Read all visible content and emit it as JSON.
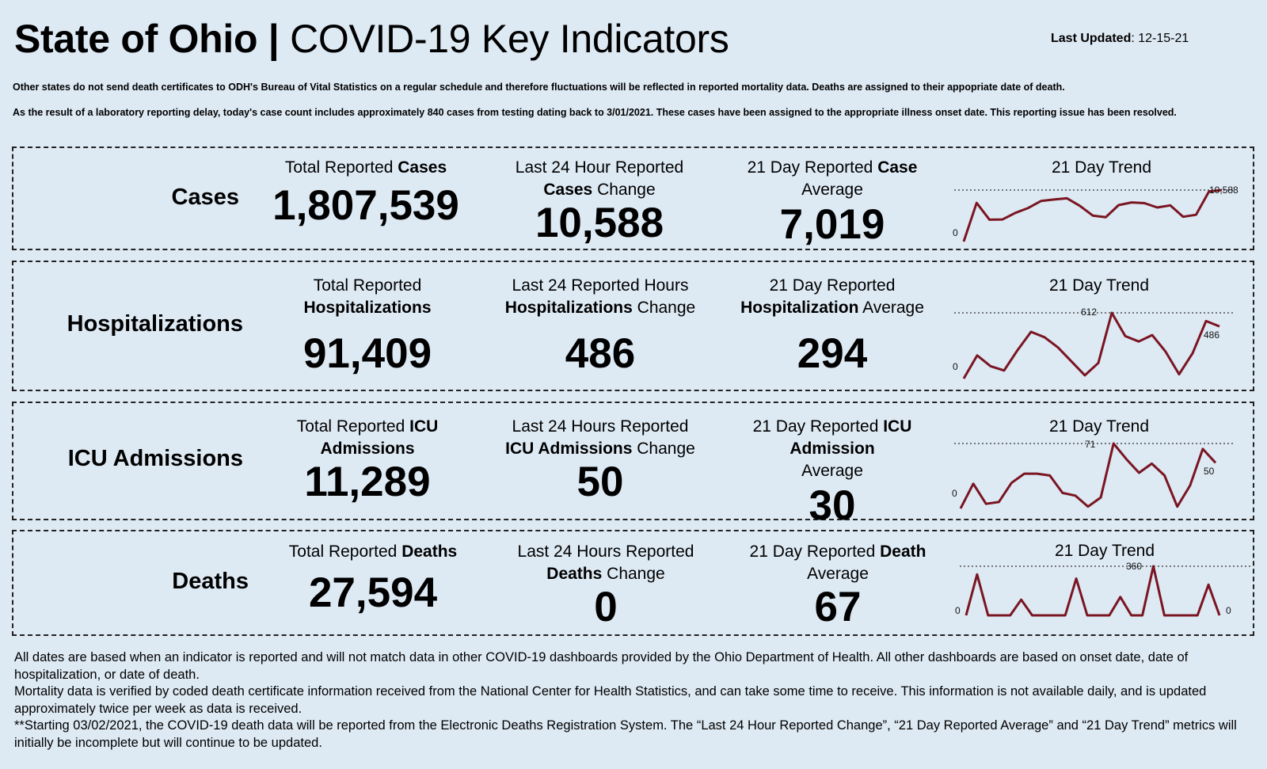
{
  "header": {
    "title_bold": "State of Ohio |",
    "title_rest": " COVID-19  Key Indicators",
    "updated_label": "Last Updated",
    "updated_value": ": 12-15-21"
  },
  "notes": [
    "Other states do not send death certificates to ODH's Bureau of Vital Statistics on a regular schedule and therefore fluctuations will be reflected in reported mortality data. Deaths are assigned to their appopriate date of death.",
    "As the result of a laboratory reporting delay, today's case count includes approximately 840 cases from testing dating back to 3/01/2021. These cases have been assigned to the appropriate illness onset date. This reporting issue has been resolved."
  ],
  "rows": {
    "cases": {
      "label": "Cases",
      "m1": {
        "pre": "Total Reported ",
        "bold": "Cases",
        "post": "",
        "value": "1,807,539"
      },
      "m2": {
        "pre": "Last 24 Hour Reported ",
        "bold": "Cases",
        "post": " Change",
        "value": "10,588"
      },
      "m3": {
        "pre": "21 Day Reported ",
        "bold": "Case",
        "post": " Average",
        "value": "7,019"
      },
      "trend_title": "21 Day Trend"
    },
    "hosp": {
      "label": "Hospitalizations",
      "m1": {
        "pre": "Total Reported ",
        "bold": "Hospitalizations",
        "post": "",
        "value": "91,409"
      },
      "m2": {
        "pre": "Last 24 Reported Hours ",
        "bold": "Hospitalizations",
        "post": " Change",
        "value": "486"
      },
      "m3": {
        "pre": "21 Day Reported ",
        "bold": "Hospitalization",
        "post": " Average",
        "value": "294"
      },
      "trend_title": "21 Day Trend"
    },
    "icu": {
      "label": "ICU Admissions",
      "m1": {
        "pre": "Total Reported ",
        "bold": "ICU Admissions",
        "post": "",
        "value": "11,289"
      },
      "m2": {
        "pre": "Last 24 Hours Reported ",
        "bold": "ICU Admissions",
        "post": " Change",
        "value": "50"
      },
      "m3": {
        "pre": "21 Day Reported ",
        "bold": "ICU Admission",
        "post": " Average",
        "value": "30"
      },
      "trend_title": "21 Day Trend"
    },
    "deaths": {
      "label": "Deaths",
      "m1": {
        "pre": "Total Reported ",
        "bold": "Deaths",
        "post": "",
        "value": "27,594"
      },
      "m2": {
        "pre": "Last 24 Hours Reported ",
        "bold": "Deaths",
        "post": " Change",
        "value": "0"
      },
      "m3": {
        "pre": "21 Day Reported ",
        "bold": "Death",
        "post": " Average",
        "value": "67"
      },
      "trend_title": "21 Day Trend"
    }
  },
  "footer": [
    "All dates are based when an indicator is reported and will not match data in other COVID-19 dashboards provided by the Ohio Department of Health. All other dashboards are based on onset date, date of hospitalization, or date of death.",
    "Mortality data is verified by coded death certificate information received from the National Center for Health Statistics, and can take some time to receive. This information is not available daily, and is updated approximately twice per week as data is received.",
    "**Starting 03/02/2021, the COVID-19 death data will be reported from the Electronic Deaths Registration System. The “Last 24 Hour Reported Change”, “21 Day Reported Average” and “21 Day Trend” metrics will initially be incomplete but will continue to be updated."
  ],
  "colors": {
    "line": "#7a1522",
    "background": "#dde9f3"
  },
  "chart_data": [
    {
      "type": "line",
      "id": "cases",
      "title": "21 Day Trend",
      "ylim": [
        0,
        10588
      ],
      "values": [
        0,
        7950,
        4500,
        4550,
        5900,
        6900,
        8350,
        8650,
        8900,
        7350,
        5350,
        5000,
        7500,
        8050,
        7900,
        7000,
        7450,
        5100,
        5500,
        10300,
        10588
      ],
      "labels": {
        "zero": "0",
        "max": "10,588"
      }
    },
    {
      "type": "line",
      "id": "hosp",
      "title": "21 Day Trend",
      "ylim": [
        0,
        612
      ],
      "values": [
        0,
        215,
        115,
        75,
        265,
        435,
        385,
        290,
        160,
        30,
        145,
        612,
        395,
        345,
        405,
        250,
        40,
        235,
        535,
        486
      ],
      "labels": {
        "zero": "0",
        "max": "612",
        "last": "486"
      }
    },
    {
      "type": "line",
      "id": "icu",
      "title": "21 Day Trend",
      "ylim": [
        0,
        71
      ],
      "values": [
        0,
        27,
        5,
        7,
        28,
        38,
        38,
        36,
        17,
        14,
        2,
        12,
        71,
        54,
        39,
        49,
        36,
        2,
        25,
        65,
        50
      ],
      "labels": {
        "zero": "0",
        "max": "71",
        "last": "50"
      }
    },
    {
      "type": "line",
      "id": "deaths",
      "title": "21 Day Trend",
      "ylim": [
        0,
        360
      ],
      "values": [
        0,
        300,
        0,
        0,
        0,
        115,
        0,
        0,
        0,
        0,
        270,
        0,
        0,
        0,
        135,
        0,
        0,
        360,
        0,
        0,
        0,
        0,
        225,
        0
      ],
      "labels": {
        "zero": "0",
        "max": "360",
        "last": "0"
      }
    }
  ]
}
